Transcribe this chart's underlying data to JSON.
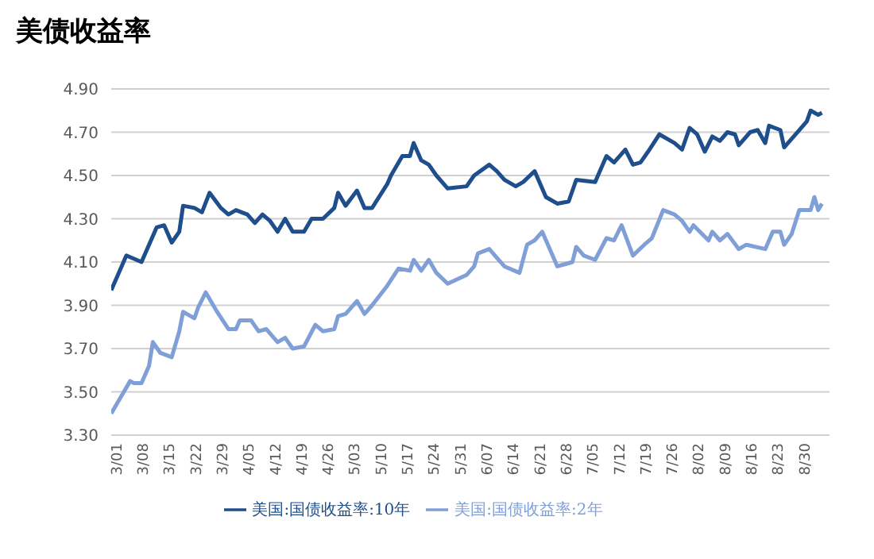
{
  "chart_data": {
    "type": "line",
    "title": "美债收益率",
    "ylim": [
      3.3,
      4.9
    ],
    "yticks": [
      {
        "value": 3.3,
        "label": "3.30"
      },
      {
        "value": 3.5,
        "label": "3.50"
      },
      {
        "value": 3.7,
        "label": "3.70"
      },
      {
        "value": 3.9,
        "label": "3.90"
      },
      {
        "value": 4.1,
        "label": "4.10"
      },
      {
        "value": 4.3,
        "label": "4.30"
      },
      {
        "value": 4.5,
        "label": "4.50"
      },
      {
        "value": 4.7,
        "label": "4.70"
      },
      {
        "value": 4.9,
        "label": "4.90"
      }
    ],
    "xlim": [
      "--03-01",
      "--09-07"
    ],
    "xticks": [
      {
        "value": "--03-01",
        "label": "3/01"
      },
      {
        "value": "--03-08",
        "label": "3/08"
      },
      {
        "value": "--03-15",
        "label": "3/15"
      },
      {
        "value": "--03-22",
        "label": "3/22"
      },
      {
        "value": "--03-29",
        "label": "3/29"
      },
      {
        "value": "--04-05",
        "label": "4/05"
      },
      {
        "value": "--04-12",
        "label": "4/12"
      },
      {
        "value": "--04-19",
        "label": "4/19"
      },
      {
        "value": "--04-26",
        "label": "4/26"
      },
      {
        "value": "--05-03",
        "label": "5/03"
      },
      {
        "value": "--05-10",
        "label": "5/10"
      },
      {
        "value": "--05-17",
        "label": "5/17"
      },
      {
        "value": "--05-24",
        "label": "5/24"
      },
      {
        "value": "--05-31",
        "label": "5/31"
      },
      {
        "value": "--06-07",
        "label": "6/07"
      },
      {
        "value": "--06-14",
        "label": "6/14"
      },
      {
        "value": "--06-21",
        "label": "6/21"
      },
      {
        "value": "--06-28",
        "label": "6/28"
      },
      {
        "value": "--07-05",
        "label": "7/05"
      },
      {
        "value": "--07-12",
        "label": "7/12"
      },
      {
        "value": "--07-19",
        "label": "7/19"
      },
      {
        "value": "--07-26",
        "label": "7/26"
      },
      {
        "value": "--08-02",
        "label": "8/02"
      },
      {
        "value": "--08-09",
        "label": "8/09"
      },
      {
        "value": "--08-16",
        "label": "8/16"
      },
      {
        "value": "--08-23",
        "label": "8/23"
      },
      {
        "value": "--08-30",
        "label": "8/30"
      }
    ],
    "grid": "y",
    "legend": "bottom",
    "marker": "none",
    "line_style": "solid",
    "series": [
      {
        "name": "美国:国债收益率:10年",
        "color": "#1f4e8c",
        "x": [
          "--03-01",
          "--03-05",
          "--03-09",
          "--03-13",
          "--03-15",
          "--03-17",
          "--03-19",
          "--03-20",
          "--03-23",
          "--03-25",
          "--03-27",
          "--03-30",
          "--04-01",
          "--04-03",
          "--04-06",
          "--04-08",
          "--04-10",
          "--04-12",
          "--04-14",
          "--04-16",
          "--04-18",
          "--04-21",
          "--04-23",
          "--04-26",
          "--04-29",
          "--04-30",
          "--05-02",
          "--05-05",
          "--05-07",
          "--05-09",
          "--05-13",
          "--05-14",
          "--05-17",
          "--05-19",
          "--05-20",
          "--05-22",
          "--05-24",
          "--05-26",
          "--05-29",
          "--06-03",
          "--06-05",
          "--06-09",
          "--06-11",
          "--06-13",
          "--06-16",
          "--06-18",
          "--06-21",
          "--06-24",
          "--06-27",
          "--06-30",
          "--07-02",
          "--07-07",
          "--07-10",
          "--07-12",
          "--07-15",
          "--07-17",
          "--07-19",
          "--07-21",
          "--07-24",
          "--07-28",
          "--07-30",
          "--08-01",
          "--08-03",
          "--08-05",
          "--08-07",
          "--08-09",
          "--08-11",
          "--08-13",
          "--08-14",
          "--08-17",
          "--08-19",
          "--08-21",
          "--08-22",
          "--08-25",
          "--08-26",
          "--08-30",
          "--09-01",
          "--09-02",
          "--09-04",
          "--09-05"
        ],
        "values": [
          3.97,
          4.13,
          4.1,
          4.26,
          4.27,
          4.19,
          4.24,
          4.36,
          4.35,
          4.33,
          4.42,
          4.35,
          4.32,
          4.34,
          4.32,
          4.28,
          4.32,
          4.29,
          4.24,
          4.3,
          4.24,
          4.24,
          4.3,
          4.3,
          4.35,
          4.42,
          4.36,
          4.43,
          4.35,
          4.35,
          4.46,
          4.5,
          4.59,
          4.59,
          4.65,
          4.57,
          4.55,
          4.5,
          4.44,
          4.45,
          4.5,
          4.55,
          4.52,
          4.48,
          4.45,
          4.47,
          4.52,
          4.4,
          4.37,
          4.38,
          4.48,
          4.47,
          4.59,
          4.56,
          4.62,
          4.55,
          4.56,
          4.61,
          4.69,
          4.65,
          4.62,
          4.72,
          4.69,
          4.61,
          4.68,
          4.66,
          4.7,
          4.69,
          4.64,
          4.7,
          4.71,
          4.65,
          4.73,
          4.71,
          4.63,
          4.71,
          4.75,
          4.8,
          4.78,
          4.79
        ]
      },
      {
        "name": "美国:国债收益率:2年",
        "color": "#7f9fd6",
        "x": [
          "--03-01",
          "--03-04",
          "--03-06",
          "--03-07",
          "--03-09",
          "--03-11",
          "--03-12",
          "--03-14",
          "--03-17",
          "--03-19",
          "--03-20",
          "--03-23",
          "--03-24",
          "--03-26",
          "--03-29",
          "--04-01",
          "--04-03",
          "--04-04",
          "--04-07",
          "--04-09",
          "--04-11",
          "--04-14",
          "--04-16",
          "--04-18",
          "--04-21",
          "--04-24",
          "--04-26",
          "--04-29",
          "--04-30",
          "--05-02",
          "--05-05",
          "--05-07",
          "--05-09",
          "--05-13",
          "--05-16",
          "--05-19",
          "--05-20",
          "--05-22",
          "--05-24",
          "--05-26",
          "--05-29",
          "--06-03",
          "--06-05",
          "--06-06",
          "--06-09",
          "--06-11",
          "--06-13",
          "--06-17",
          "--06-19",
          "--06-21",
          "--06-23",
          "--06-27",
          "--06-29",
          "--07-01",
          "--07-02",
          "--07-04",
          "--07-07",
          "--07-10",
          "--07-12",
          "--07-14",
          "--07-17",
          "--07-20",
          "--07-22",
          "--07-25",
          "--07-28",
          "--07-30",
          "--08-01",
          "--08-02",
          "--08-06",
          "--08-07",
          "--08-09",
          "--08-11",
          "--08-14",
          "--08-16",
          "--08-21",
          "--08-23",
          "--08-25",
          "--08-26",
          "--08-28",
          "--08-30",
          "--09-02",
          "--09-03",
          "--09-04",
          "--09-05"
        ],
        "values": [
          3.4,
          3.49,
          3.55,
          3.54,
          3.54,
          3.62,
          3.73,
          3.68,
          3.66,
          3.78,
          3.87,
          3.84,
          3.89,
          3.96,
          3.87,
          3.79,
          3.79,
          3.83,
          3.83,
          3.78,
          3.79,
          3.73,
          3.75,
          3.7,
          3.71,
          3.81,
          3.78,
          3.79,
          3.85,
          3.86,
          3.92,
          3.86,
          3.9,
          3.99,
          4.07,
          4.06,
          4.11,
          4.06,
          4.11,
          4.05,
          4.0,
          4.04,
          4.08,
          4.14,
          4.16,
          4.12,
          4.08,
          4.05,
          4.18,
          4.2,
          4.24,
          4.08,
          4.09,
          4.1,
          4.17,
          4.13,
          4.11,
          4.21,
          4.2,
          4.27,
          4.13,
          4.18,
          4.21,
          4.34,
          4.32,
          4.29,
          4.24,
          4.27,
          4.2,
          4.24,
          4.2,
          4.23,
          4.16,
          4.18,
          4.16,
          4.24,
          4.24,
          4.18,
          4.23,
          4.34,
          4.34,
          4.4,
          4.34,
          4.37
        ]
      }
    ]
  }
}
